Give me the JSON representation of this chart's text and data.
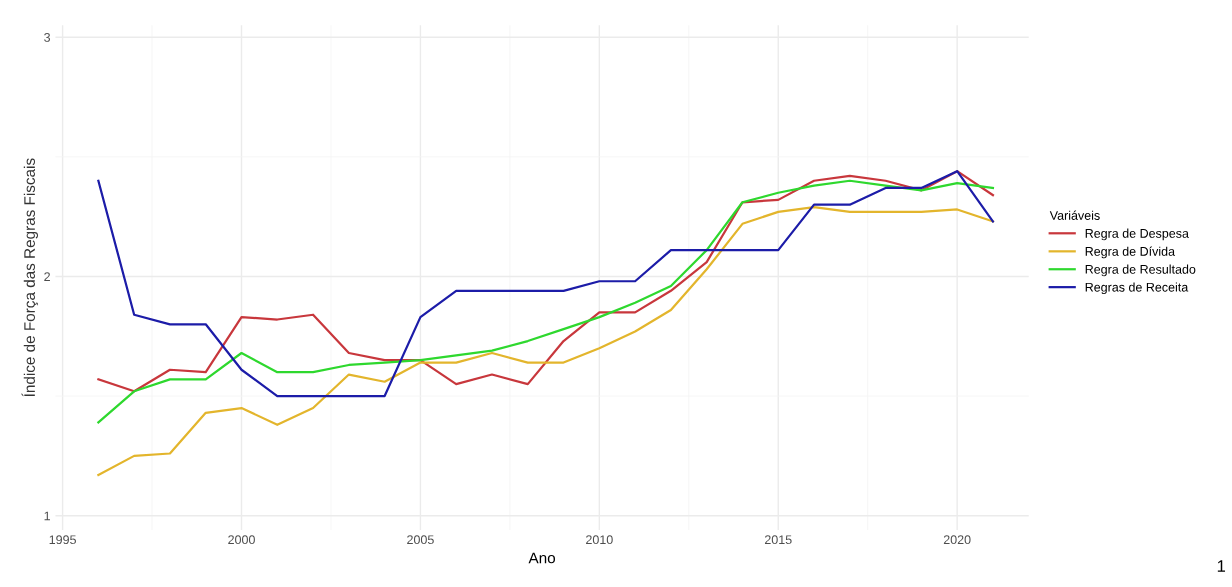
{
  "chart_data": {
    "type": "line",
    "xlabel": "Ano",
    "ylabel": "Índice de Força das Regras Fiscais",
    "legend_title": "Variáveis",
    "legend": "right",
    "grid": true,
    "x": [
      1996,
      1997,
      1998,
      1999,
      2000,
      2001,
      2002,
      2003,
      2004,
      2005,
      2006,
      2007,
      2008,
      2009,
      2010,
      2011,
      2012,
      2013,
      2014,
      2015,
      2016,
      2017,
      2018,
      2019,
      2020,
      2021
    ],
    "xlim": [
      1994.8,
      2022.0
    ],
    "xticks": [
      1995,
      2000,
      2005,
      2010,
      2015,
      2020
    ],
    "ylim": [
      0.94,
      3.05
    ],
    "yticks": [
      1,
      2,
      3
    ],
    "annotations": [
      "1"
    ],
    "series": [
      {
        "name": "Regra de Despesa",
        "color": "#c8373c",
        "values": [
          1.57,
          1.52,
          1.61,
          1.6,
          1.83,
          1.82,
          1.84,
          1.68,
          1.65,
          1.65,
          1.55,
          1.59,
          1.55,
          1.73,
          1.85,
          1.85,
          1.94,
          2.06,
          2.31,
          2.32,
          2.4,
          2.42,
          2.4,
          2.36,
          2.44,
          2.34
        ]
      },
      {
        "name": "Regra de Dívida",
        "color": "#e3b52c",
        "values": [
          1.17,
          1.25,
          1.26,
          1.43,
          1.45,
          1.38,
          1.45,
          1.59,
          1.56,
          1.64,
          1.64,
          1.68,
          1.64,
          1.64,
          1.7,
          1.77,
          1.86,
          2.03,
          2.22,
          2.27,
          2.29,
          2.27,
          2.27,
          2.27,
          2.28,
          2.23
        ]
      },
      {
        "name": "Regra de Resultado",
        "color": "#2ed82e",
        "values": [
          1.39,
          1.52,
          1.57,
          1.57,
          1.68,
          1.6,
          1.6,
          1.63,
          1.64,
          1.65,
          1.67,
          1.69,
          1.73,
          1.78,
          1.83,
          1.89,
          1.96,
          2.11,
          2.31,
          2.35,
          2.38,
          2.4,
          2.38,
          2.36,
          2.39,
          2.37
        ]
      },
      {
        "name": "Regras de Receita",
        "color": "#1c1ca8",
        "values": [
          2.4,
          1.84,
          1.8,
          1.8,
          1.61,
          1.5,
          1.5,
          1.5,
          1.5,
          1.83,
          1.94,
          1.94,
          1.94,
          1.94,
          1.98,
          1.98,
          2.11,
          2.11,
          2.11,
          2.11,
          2.3,
          2.3,
          2.37,
          2.37,
          2.44,
          2.23
        ]
      }
    ]
  }
}
